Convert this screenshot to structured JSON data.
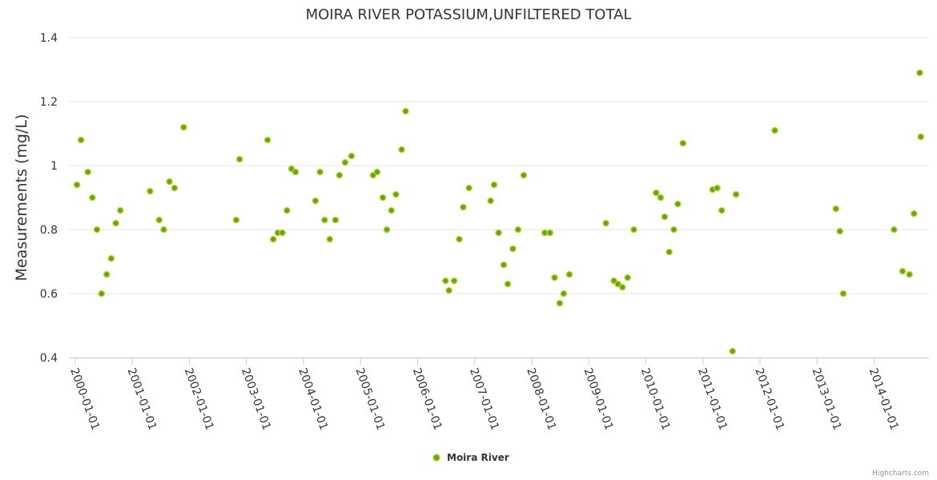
{
  "colors": {
    "marker_fill": "#6aa30b",
    "marker_stroke": "#b5d43a",
    "grid": "#e6e6e6",
    "axis": "#c0d0e0",
    "text": "#333333"
  },
  "chart_data": {
    "type": "scatter",
    "title": "MOIRA RIVER POTASSIUM,UNFILTERED TOTAL",
    "xlabel": "",
    "ylabel": "Measurements (mg/L)",
    "ylim": [
      0.4,
      1.4
    ],
    "yticks": [
      0.4,
      0.6,
      0.8,
      1,
      1.2,
      1.4
    ],
    "ytick_labels": [
      "0.4",
      "0.6",
      "0.8",
      "1",
      "1.2",
      "1.4"
    ],
    "xlim": [
      2000.0,
      2014.85
    ],
    "xticks": [
      2000,
      2001,
      2002,
      2003,
      2004,
      2005,
      2006,
      2007,
      2008,
      2009,
      2010,
      2011,
      2012,
      2013,
      2014
    ],
    "xtick_labels": [
      "2000-01-01",
      "2001-01-01",
      "2002-01-01",
      "2003-01-01",
      "2004-01-01",
      "2005-01-01",
      "2006-01-01",
      "2007-01-01",
      "2008-01-01",
      "2009-01-01",
      "2010-01-01",
      "2011-01-01",
      "2012-01-01",
      "2013-01-01",
      "2014-01-01"
    ],
    "legend": {
      "position": "bottom-center",
      "entries": [
        "Moira River"
      ]
    },
    "credit": "Highcharts.com",
    "series": [
      {
        "name": "Moira River",
        "points": [
          [
            2000.03,
            0.94
          ],
          [
            2000.1,
            1.08
          ],
          [
            2000.22,
            0.98
          ],
          [
            2000.3,
            0.9
          ],
          [
            2000.38,
            0.8
          ],
          [
            2000.46,
            0.6
          ],
          [
            2000.55,
            0.66
          ],
          [
            2000.63,
            0.71
          ],
          [
            2000.71,
            0.82
          ],
          [
            2000.79,
            0.86
          ],
          [
            2001.31,
            0.92
          ],
          [
            2001.47,
            0.83
          ],
          [
            2001.55,
            0.8
          ],
          [
            2001.65,
            0.95
          ],
          [
            2001.74,
            0.93
          ],
          [
            2001.9,
            1.12
          ],
          [
            2002.82,
            0.83
          ],
          [
            2002.88,
            1.02
          ],
          [
            2003.37,
            1.08
          ],
          [
            2003.47,
            0.77
          ],
          [
            2003.55,
            0.79
          ],
          [
            2003.63,
            0.79
          ],
          [
            2003.71,
            0.86
          ],
          [
            2003.79,
            0.99
          ],
          [
            2003.86,
            0.98
          ],
          [
            2004.21,
            0.89
          ],
          [
            2004.29,
            0.98
          ],
          [
            2004.37,
            0.83
          ],
          [
            2004.46,
            0.77
          ],
          [
            2004.56,
            0.83
          ],
          [
            2004.63,
            0.97
          ],
          [
            2004.73,
            1.01
          ],
          [
            2004.84,
            1.03
          ],
          [
            2005.22,
            0.97
          ],
          [
            2005.29,
            0.98
          ],
          [
            2005.39,
            0.9
          ],
          [
            2005.46,
            0.8
          ],
          [
            2005.54,
            0.86
          ],
          [
            2005.62,
            0.91
          ],
          [
            2005.72,
            1.05
          ],
          [
            2005.79,
            1.17
          ],
          [
            2006.49,
            0.64
          ],
          [
            2006.55,
            0.61
          ],
          [
            2006.64,
            0.64
          ],
          [
            2006.73,
            0.77
          ],
          [
            2006.8,
            0.87
          ],
          [
            2006.9,
            0.93
          ],
          [
            2007.28,
            0.89
          ],
          [
            2007.34,
            0.94
          ],
          [
            2007.42,
            0.79
          ],
          [
            2007.51,
            0.69
          ],
          [
            2007.58,
            0.63
          ],
          [
            2007.67,
            0.74
          ],
          [
            2007.76,
            0.8
          ],
          [
            2007.86,
            0.97
          ],
          [
            2008.23,
            0.79
          ],
          [
            2008.32,
            0.79
          ],
          [
            2008.4,
            0.65
          ],
          [
            2008.49,
            0.57
          ],
          [
            2008.56,
            0.6
          ],
          [
            2008.66,
            0.66
          ],
          [
            2009.3,
            0.82
          ],
          [
            2009.44,
            0.64
          ],
          [
            2009.51,
            0.63
          ],
          [
            2009.59,
            0.62
          ],
          [
            2009.68,
            0.65
          ],
          [
            2009.79,
            0.8
          ],
          [
            2010.18,
            0.915
          ],
          [
            2010.26,
            0.9
          ],
          [
            2010.33,
            0.84
          ],
          [
            2010.41,
            0.73
          ],
          [
            2010.49,
            0.8
          ],
          [
            2010.56,
            0.88
          ],
          [
            2010.65,
            1.07
          ],
          [
            2011.17,
            0.925
          ],
          [
            2011.25,
            0.93
          ],
          [
            2011.33,
            0.86
          ],
          [
            2011.52,
            0.42
          ],
          [
            2011.58,
            0.91
          ],
          [
            2012.26,
            1.11
          ],
          [
            2013.33,
            0.865
          ],
          [
            2013.4,
            0.795
          ],
          [
            2013.46,
            0.6
          ],
          [
            2014.35,
            0.8
          ],
          [
            2014.5,
            0.67
          ],
          [
            2014.62,
            0.66
          ],
          [
            2014.7,
            0.85
          ],
          [
            2014.8,
            1.29
          ],
          [
            2014.82,
            1.09
          ]
        ]
      }
    ]
  }
}
